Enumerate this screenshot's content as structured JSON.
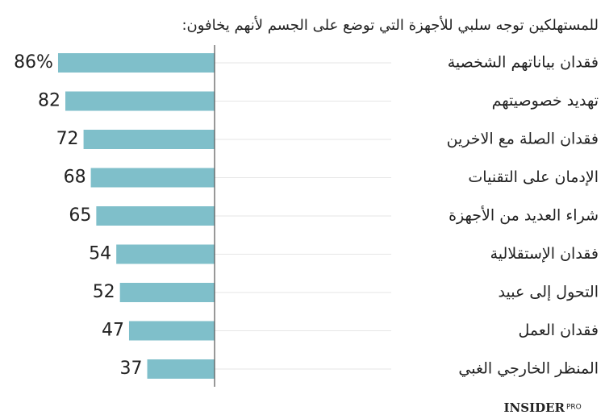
{
  "chart_data": {
    "type": "bar",
    "orientation": "horizontal",
    "title": "للمستهلكين توجه سلبي للأجهزة التي توضع على الجسم لأنهم يخافون:",
    "categories": [
      "فقدان بياناتهم الشخصية",
      "تهديد خصوصيتهم",
      "فقدان الصلة مع الاخرين",
      "الإدمان على التقنيات",
      "شراء العديد من الأجهزة",
      "فقدان الإستقلالية",
      "التحول إلى عبيد",
      "فقدان العمل",
      "المنظر الخارجي الغبي"
    ],
    "values": [
      86,
      82,
      72,
      68,
      65,
      54,
      52,
      47,
      37
    ],
    "value_labels": [
      "86%",
      "82",
      "72",
      "68",
      "65",
      "54",
      "52",
      "47",
      "37"
    ],
    "color": "#7fbfca",
    "brand": "INSIDER",
    "brand_sub": "PRO"
  }
}
